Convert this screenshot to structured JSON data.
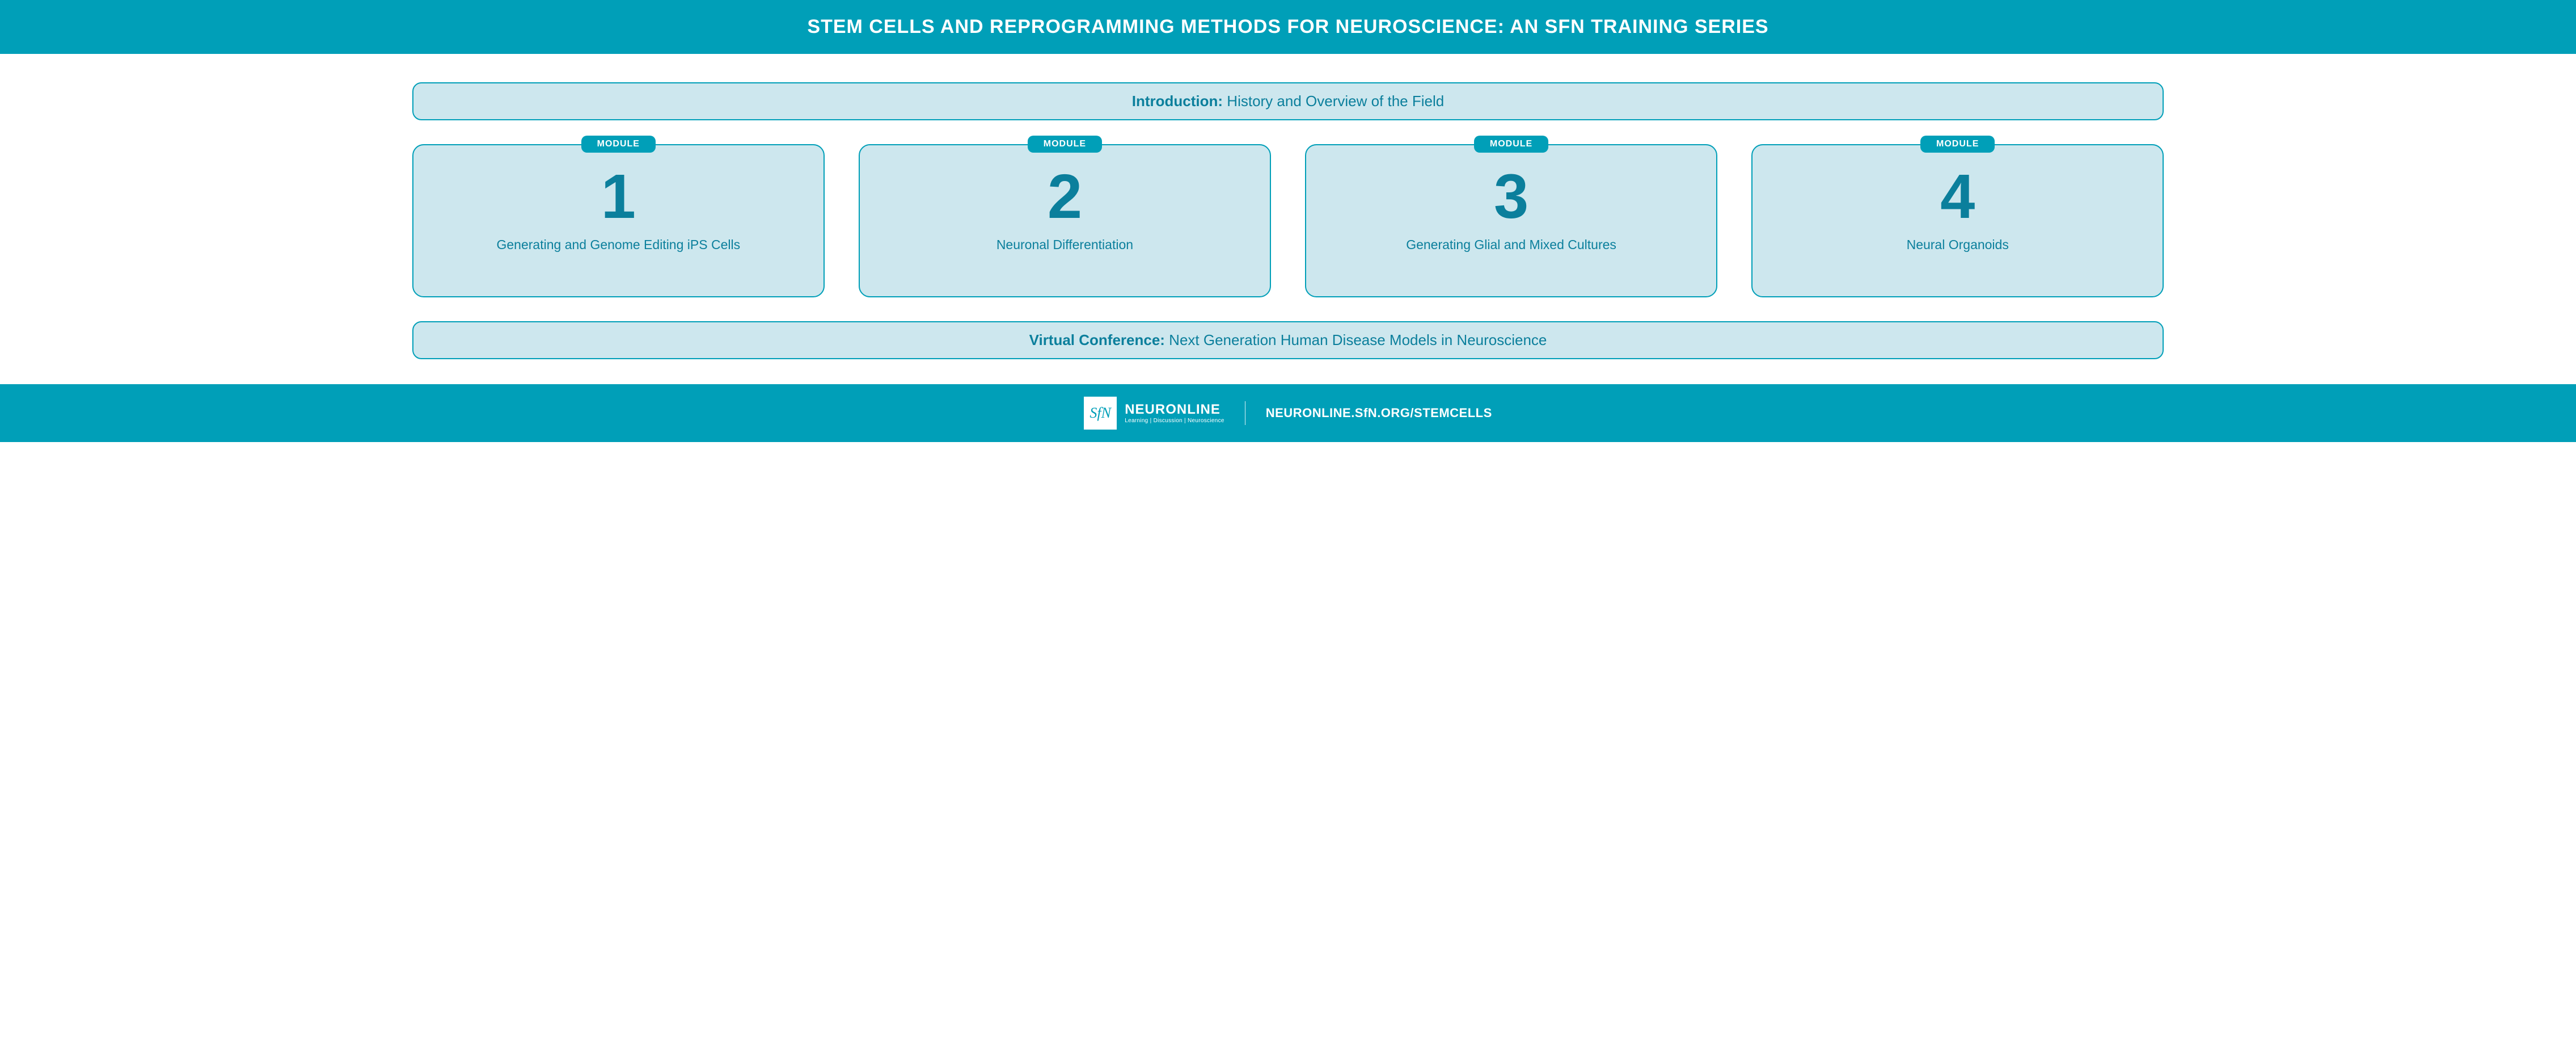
{
  "colors": {
    "teal": "#009fb8",
    "dark_teal": "#0b7f9c",
    "light_fill": "#cde7ee",
    "white": "#ffffff"
  },
  "header": {
    "title": "STEM CELLS AND REPROGRAMMING METHODS FOR NEUROSCIENCE: AN SFN TRAINING SERIES"
  },
  "intro": {
    "bold": "Introduction:",
    "rest": " History and Overview of the Field"
  },
  "modules_label": "MODULE",
  "modules": [
    {
      "number": "1",
      "title": "Generating and Genome Editing iPS Cells"
    },
    {
      "number": "2",
      "title": "Neuronal Differentiation"
    },
    {
      "number": "3",
      "title": "Generating Glial and Mixed Cultures"
    },
    {
      "number": "4",
      "title": "Neural Organoids"
    }
  ],
  "conference": {
    "bold": "Virtual Conference:",
    "rest": " Next Generation Human Disease Models in Neuroscience"
  },
  "footer": {
    "logo_mark": "SfN",
    "logo_title": "NEURONLINE",
    "logo_sub": "Learning | Discussion | Neuroscience",
    "url": "NEURONLINE.SfN.ORG/STEMCELLS"
  },
  "typography": {
    "header_fontsize": 34,
    "pill_fontsize": 26,
    "module_number_fontsize": 110,
    "module_title_fontsize": 23,
    "footer_url_fontsize": 22
  },
  "layout": {
    "module_count": 4,
    "pill_border_radius": 16,
    "card_border_radius": 20
  }
}
